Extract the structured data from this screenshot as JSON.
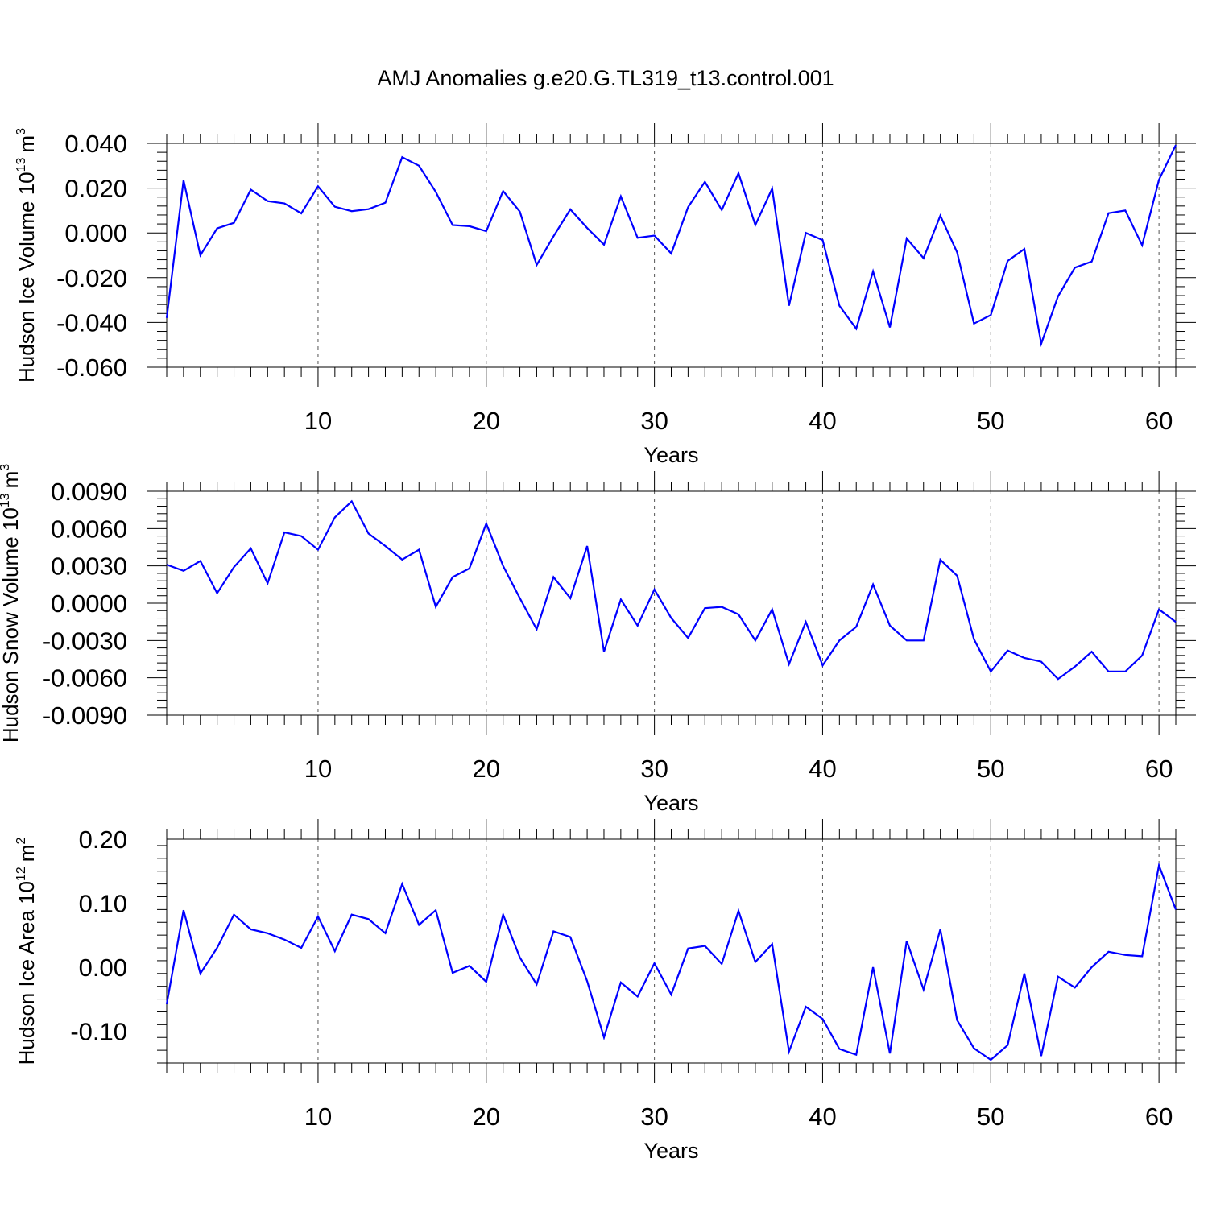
{
  "title": "AMJ Anomalies g.e20.G.TL319_t13.control.001",
  "colors": {
    "series": "#0000ff",
    "axis": "#000000",
    "grid": "#555555"
  },
  "chart_data": [
    {
      "type": "line",
      "ylabel_main": "Hudson Ice Volume 10",
      "ylabel_exp": "13",
      "ylabel_unit": "m",
      "ylabel_unit_exp": "3",
      "xlabel": "Years",
      "xlim": [
        1,
        61
      ],
      "ylim": [
        -0.06,
        0.04
      ],
      "xticks": [
        10,
        20,
        30,
        40,
        50,
        60
      ],
      "xtick_labels": [
        "10",
        "20",
        "30",
        "40",
        "50",
        "60"
      ],
      "yticks": [
        -0.06,
        -0.04,
        -0.02,
        0.0,
        0.02,
        0.04
      ],
      "ytick_labels": [
        "-0.060",
        "-0.040",
        "-0.020",
        "0.000",
        "0.020",
        "0.040"
      ],
      "grid": "vertical dashed at major x ticks",
      "x": [
        1,
        2,
        3,
        4,
        5,
        6,
        7,
        8,
        9,
        10,
        11,
        12,
        13,
        14,
        15,
        16,
        17,
        18,
        19,
        20,
        21,
        22,
        23,
        24,
        25,
        26,
        27,
        28,
        29,
        30,
        31,
        32,
        33,
        34,
        35,
        36,
        37,
        38,
        39,
        40,
        41,
        42,
        43,
        44,
        45,
        46,
        47,
        48,
        49,
        50,
        51,
        52,
        53,
        54,
        55,
        56,
        57,
        58,
        59,
        60,
        61
      ],
      "values": [
        -0.038,
        0.0235,
        -0.01,
        0.002,
        0.0045,
        0.0193,
        0.0142,
        0.0132,
        0.0087,
        0.0208,
        0.0117,
        0.0097,
        0.0106,
        0.0135,
        0.0338,
        0.03,
        0.0183,
        0.0035,
        0.003,
        0.0008,
        0.0187,
        0.0095,
        -0.0143,
        -0.0015,
        0.0105,
        0.0022,
        -0.0053,
        0.0163,
        -0.0022,
        -0.0012,
        -0.0092,
        0.0115,
        0.0228,
        0.0102,
        0.0267,
        0.0035,
        0.0198,
        -0.0325,
        0.0,
        -0.0032,
        -0.0325,
        -0.0428,
        -0.0172,
        -0.0422,
        -0.0025,
        -0.0113,
        0.0077,
        -0.0087,
        -0.0405,
        -0.0367,
        -0.0125,
        -0.0072,
        -0.0495,
        -0.0283,
        -0.0155,
        -0.0128,
        0.0088,
        0.01,
        -0.0055,
        0.0237,
        0.0392
      ]
    },
    {
      "type": "line",
      "ylabel_main": "Hudson Snow Volume 10",
      "ylabel_exp": "13",
      "ylabel_unit": "m",
      "ylabel_unit_exp": "3",
      "xlabel": "Years",
      "xlim": [
        1,
        61
      ],
      "ylim": [
        -0.009,
        0.009
      ],
      "xticks": [
        10,
        20,
        30,
        40,
        50,
        60
      ],
      "xtick_labels": [
        "10",
        "20",
        "30",
        "40",
        "50",
        "60"
      ],
      "yticks": [
        -0.009,
        -0.006,
        -0.003,
        0.0,
        0.003,
        0.006,
        0.009
      ],
      "ytick_labels": [
        "-0.0090",
        "-0.0060",
        "-0.0030",
        "0.0000",
        "0.0030",
        "0.0060",
        "0.0090"
      ],
      "grid": "vertical dashed at major x ticks",
      "x": [
        1,
        2,
        3,
        4,
        5,
        6,
        7,
        8,
        9,
        10,
        11,
        12,
        13,
        14,
        15,
        16,
        17,
        18,
        19,
        20,
        21,
        22,
        23,
        24,
        25,
        26,
        27,
        28,
        29,
        30,
        31,
        32,
        33,
        34,
        35,
        36,
        37,
        38,
        39,
        40,
        41,
        42,
        43,
        44,
        45,
        46,
        47,
        48,
        49,
        50,
        51,
        52,
        53,
        54,
        55,
        56,
        57,
        58,
        59,
        60,
        61
      ],
      "values": [
        0.0031,
        0.0026,
        0.0034,
        0.0008,
        0.0029,
        0.0044,
        0.0016,
        0.0057,
        0.0054,
        0.0043,
        0.0069,
        0.0082,
        0.0056,
        0.0046,
        0.0035,
        0.0043,
        -0.0003,
        0.0021,
        0.0028,
        0.0064,
        0.003,
        0.0004,
        -0.0021,
        0.0021,
        0.0004,
        0.0046,
        -0.0039,
        0.0003,
        -0.0018,
        0.0011,
        -0.0012,
        -0.0028,
        -0.0004,
        -0.0003,
        -0.0009,
        -0.003,
        -0.0005,
        -0.0049,
        -0.0015,
        -0.005,
        -0.003,
        -0.0019,
        0.0015,
        -0.0018,
        -0.003,
        -0.003,
        0.0035,
        0.0022,
        -0.0029,
        -0.0055,
        -0.0038,
        -0.0044,
        -0.0047,
        -0.0061,
        -0.0051,
        -0.0039,
        -0.0055,
        -0.0055,
        -0.0042,
        -0.0005,
        -0.0015
      ]
    },
    {
      "type": "line",
      "ylabel_main": "Hudson Ice Area 10",
      "ylabel_exp": "12",
      "ylabel_unit": "m",
      "ylabel_unit_exp": "2",
      "xlabel": "Years",
      "xlim": [
        1,
        61
      ],
      "ylim": [
        -0.15,
        0.2
      ],
      "xticks": [
        10,
        20,
        30,
        40,
        50,
        60
      ],
      "xtick_labels": [
        "10",
        "20",
        "30",
        "40",
        "50",
        "60"
      ],
      "yticks": [
        -0.1,
        0.0,
        0.1,
        0.2
      ],
      "ytick_labels": [
        "-0.10",
        "0.00",
        "0.10",
        "0.20"
      ],
      "grid": "vertical dashed at major x ticks",
      "x": [
        1,
        2,
        3,
        4,
        5,
        6,
        7,
        8,
        9,
        10,
        11,
        12,
        13,
        14,
        15,
        16,
        17,
        18,
        19,
        20,
        21,
        22,
        23,
        24,
        25,
        26,
        27,
        28,
        29,
        30,
        31,
        32,
        33,
        34,
        35,
        36,
        37,
        38,
        39,
        40,
        41,
        42,
        43,
        44,
        45,
        46,
        47,
        48,
        49,
        50,
        51,
        52,
        53,
        54,
        55,
        56,
        57,
        58,
        59,
        60,
        61
      ],
      "values": [
        -0.058,
        0.089,
        -0.01,
        0.03,
        0.082,
        0.059,
        0.053,
        0.043,
        0.03,
        0.079,
        0.025,
        0.082,
        0.075,
        0.053,
        0.13,
        0.066,
        0.089,
        -0.009,
        0.002,
        -0.023,
        0.082,
        0.015,
        -0.027,
        0.056,
        0.047,
        -0.022,
        -0.11,
        -0.024,
        -0.046,
        0.006,
        -0.043,
        0.029,
        0.033,
        0.005,
        0.088,
        0.008,
        0.036,
        -0.132,
        -0.062,
        -0.081,
        -0.128,
        -0.137,
        0.0,
        -0.135,
        0.041,
        -0.035,
        0.059,
        -0.083,
        -0.127,
        -0.145,
        -0.122,
        -0.01,
        -0.139,
        -0.015,
        -0.032,
        0.0,
        0.024,
        0.019,
        0.017,
        0.159,
        0.09
      ]
    }
  ]
}
